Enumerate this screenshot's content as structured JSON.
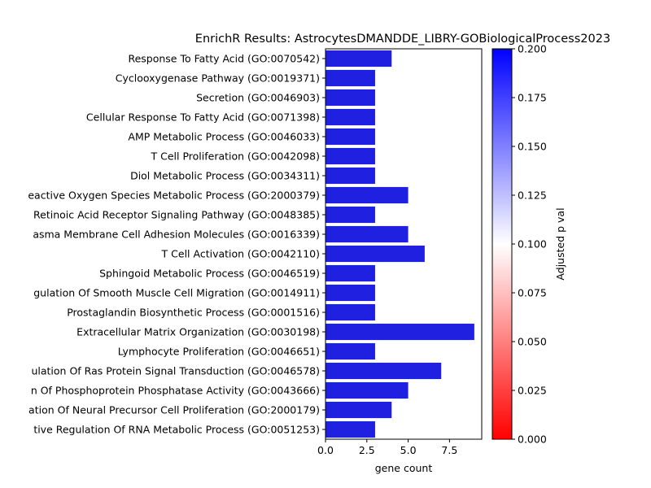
{
  "chart_data": {
    "type": "bar",
    "orientation": "horizontal",
    "title": "EnrichR Results: AstrocytesDMANDDE_LIBRY-GOBiologicalProcess2023",
    "xlabel": "gene count",
    "xlim": [
      0,
      9.45
    ],
    "xticks": [
      "0.0",
      "2.5",
      "5.0",
      "7.5"
    ],
    "xtick_values": [
      0,
      2.5,
      5.0,
      7.5
    ],
    "bar_color": "#2020e0",
    "categories": [
      "Response To Fatty Acid (GO:0070542)",
      "Cyclooxygenase Pathway (GO:0019371)",
      "Secretion (GO:0046903)",
      "Cellular Response To Fatty Acid (GO:0071398)",
      "AMP Metabolic Process (GO:0046033)",
      "T Cell Proliferation (GO:0042098)",
      "Diol Metabolic Process (GO:0034311)",
      "eactive Oxygen Species Metabolic Process (GO:2000379)",
      "Retinoic Acid Receptor Signaling Pathway (GO:0048385)",
      "asma Membrane Cell Adhesion Molecules (GO:0016339)",
      "T Cell Activation (GO:0042110)",
      "Sphingoid Metabolic Process (GO:0046519)",
      "gulation Of Smooth Muscle Cell Migration (GO:0014911)",
      "Prostaglandin Biosynthetic Process (GO:0001516)",
      "Extracellular Matrix Organization (GO:0030198)",
      "Lymphocyte Proliferation (GO:0046651)",
      "ulation Of Ras Protein Signal Transduction (GO:0046578)",
      "n Of Phosphoprotein Phosphatase Activity (GO:0043666)",
      "ation Of Neural Precursor Cell Proliferation (GO:2000179)",
      "tive Regulation Of RNA Metabolic Process (GO:0051253)"
    ],
    "values": [
      4,
      3,
      3,
      3,
      3,
      3,
      3,
      5,
      3,
      5,
      6,
      3,
      3,
      3,
      9,
      3,
      7,
      5,
      4,
      3
    ],
    "colorbar": {
      "label": "Adjusted p val",
      "range": [
        0,
        0.2
      ],
      "ticks": [
        "0.000",
        "0.025",
        "0.050",
        "0.075",
        "0.100",
        "0.125",
        "0.150",
        "0.175",
        "0.200"
      ],
      "tick_values": [
        0,
        0.025,
        0.05,
        0.075,
        0.1,
        0.125,
        0.15,
        0.175,
        0.2
      ],
      "colors": [
        "#ff0000",
        "#ffffff",
        "#0000ff"
      ]
    },
    "grid": false,
    "legend": "none"
  }
}
